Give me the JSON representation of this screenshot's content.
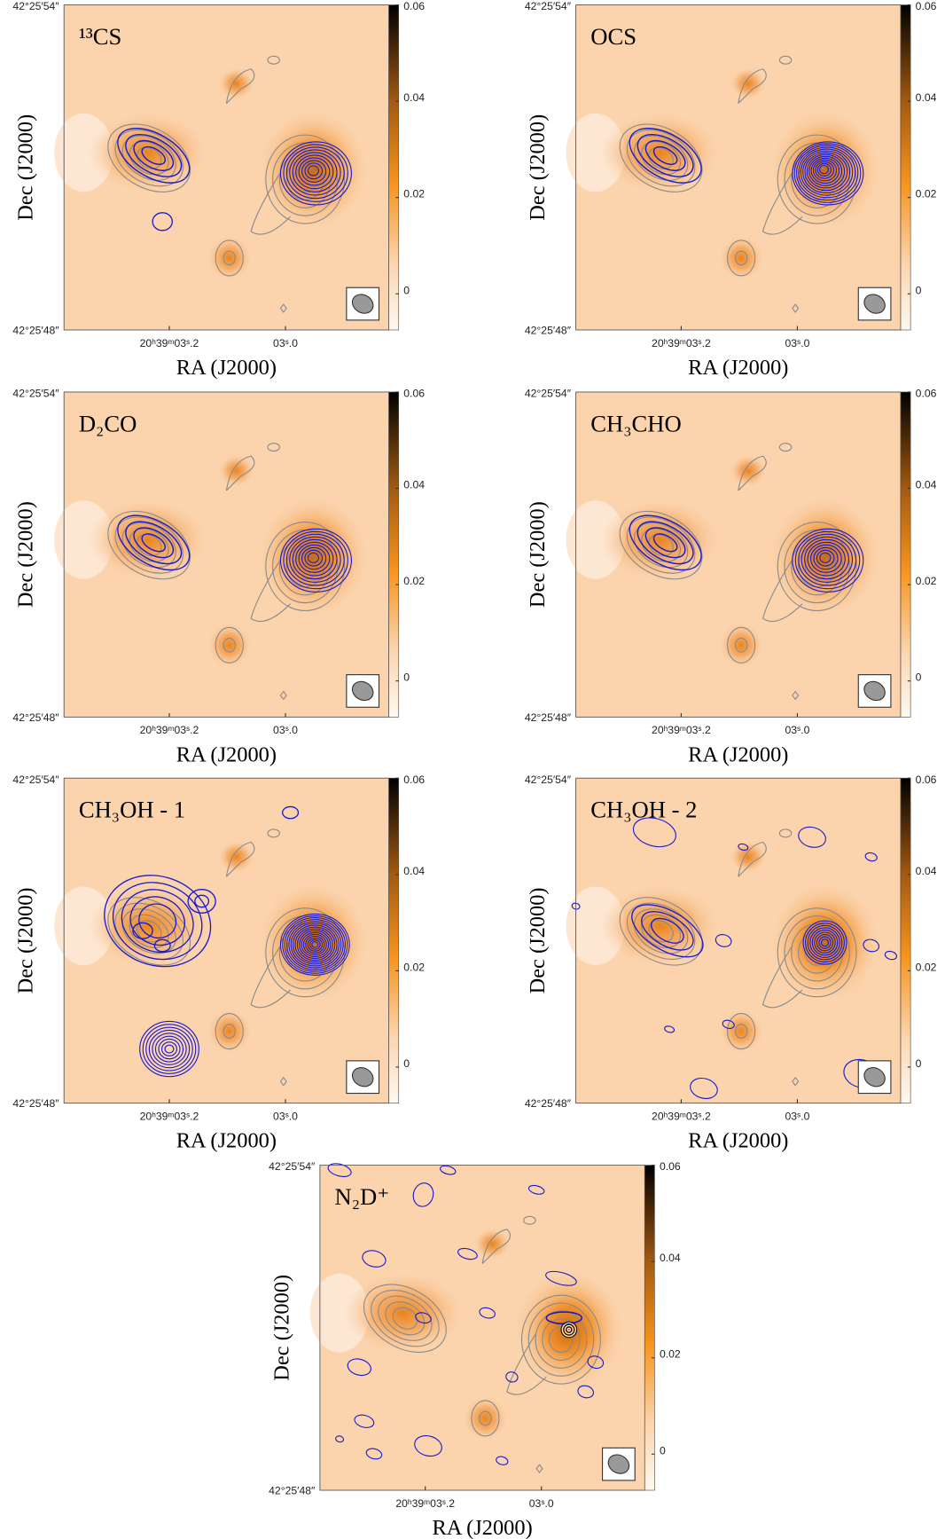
{
  "axes": {
    "xlabel": "RA (J2000)",
    "ylabel": "Dec (J2000)",
    "dec_top": "42°25′54″",
    "dec_bottom": "42°25′48″",
    "ra_ticks": [
      "20ʰ39ᵐ03ˢ.2",
      "03ˢ.0"
    ],
    "colorbar": {
      "lim": [
        -0.0075,
        0.06
      ],
      "ticks": [
        0,
        0.02,
        0.04,
        0.06
      ]
    }
  },
  "panels": [
    {
      "title": "¹³CS"
    },
    {
      "title": "OCS"
    },
    {
      "title": "D₂CO"
    },
    {
      "title": "CH₃CHO"
    },
    {
      "title": "CH₃OH - 1"
    },
    {
      "title": "CH₃OH - 2"
    },
    {
      "title": "N₂D⁺"
    }
  ]
}
